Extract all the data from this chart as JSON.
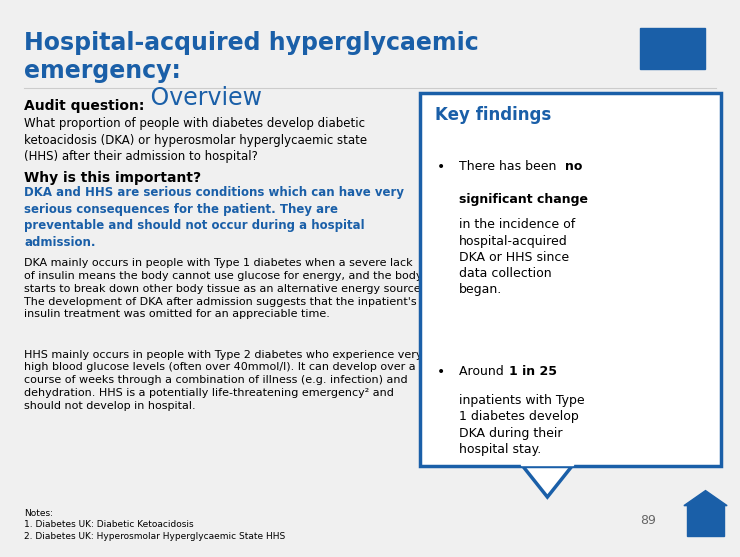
{
  "title_bold": "Hospital-acquired hyperglycaemic\nemergency:",
  "title_normal": " Overview",
  "title_color": "#1a5fa8",
  "bg_color": "#f0f0f0",
  "info_box_color": "#1a5fa8",
  "audit_heading": "Audit question:",
  "audit_question": "What proportion of people with diabetes develop diabetic\nketoacidosis (DKA) or hyperosmolar hyperglycaemic state\n(HHS) after their admission to hospital?",
  "why_heading": "Why is this important?",
  "why_bold_text": "DKA and HHS are serious conditions which can have very\nserious consequences for the patient. They are\npreventable and should not occur during a hospital\nadmission.",
  "dka_paragraph": "DKA mainly occurs in people with Type 1 diabetes when a severe lack\nof insulin means the body cannot use glucose for energy, and the body\nstarts to break down other body tissue as an alternative energy source¹.\nThe development of DKA after admission suggests that the inpatient's\ninsulin treatment was omitted for an appreciable time.",
  "hhs_paragraph": "HHS mainly occurs in people with Type 2 diabetes who experience very\nhigh blood glucose levels (often over 40mmol/l). It can develop over a\ncourse of weeks through a combination of illness (e.g. infection) and\ndehydration. HHS is a potentially life-threatening emergency² and\nshould not develop in hospital.",
  "key_findings_title": "Key findings",
  "notes": "Notes:\n1. Diabetes UK: Diabetic Ketoacidosis\n2. Diabetes UK: Hyperosmolar Hyperglycaemic State HHS",
  "page_number": "89",
  "box_border_color": "#1a5fa8",
  "blue_text_color": "#1a5fa8"
}
